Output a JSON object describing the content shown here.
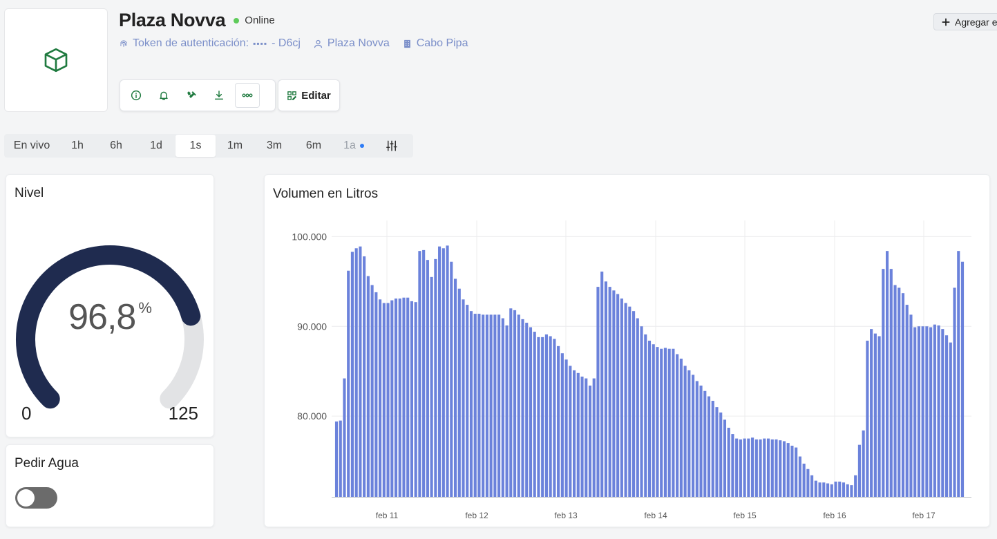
{
  "device": {
    "name": "Plaza Novva",
    "status": "Online",
    "token_label": "Token de autenticación:",
    "token_mask": "▪▪▪▪",
    "token_suffix": "- D6cj",
    "owner": "Plaza Novva",
    "org": "Cabo Pipa"
  },
  "header": {
    "add_label": "Agregar e"
  },
  "toolbar": {
    "icons": [
      "info-icon",
      "bell-icon",
      "tools-icon",
      "download-icon",
      "more-icon"
    ],
    "edit_label": "Editar"
  },
  "timeranges": {
    "items": [
      "En vivo",
      "1h",
      "6h",
      "1d",
      "1s",
      "1m",
      "3m",
      "6m",
      "1a"
    ],
    "active": "1s"
  },
  "gauge": {
    "title": "Nivel",
    "value": "96,8",
    "unit": "%",
    "min": "0",
    "max": "125",
    "fraction": 0.774,
    "color": "#1f2b4f"
  },
  "water": {
    "title": "Pedir Agua",
    "on": false
  },
  "chart_title": "Volumen en Litros",
  "chart_data": {
    "type": "bar",
    "title": "Volumen en Litros",
    "y_ticks": [
      "80.000",
      "90.000",
      "100.000"
    ],
    "x_ticks": [
      "feb 11",
      "feb 12",
      "feb 13",
      "feb 14",
      "feb 15",
      "feb 16",
      "feb 17"
    ],
    "ylim": [
      71000,
      100800
    ],
    "bar_color": "#6b82db",
    "grid": true,
    "values": [
      79400,
      79500,
      84200,
      96200,
      98300,
      98700,
      98900,
      97800,
      95600,
      94600,
      93800,
      93000,
      92600,
      92600,
      92900,
      93100,
      93100,
      93200,
      93200,
      92800,
      92700,
      98400,
      98500,
      97400,
      95500,
      97500,
      98900,
      98700,
      99000,
      97200,
      95300,
      94200,
      93000,
      92400,
      91700,
      91400,
      91400,
      91300,
      91300,
      91300,
      91300,
      91300,
      90900,
      90100,
      92000,
      91800,
      91300,
      90800,
      90400,
      89900,
      89400,
      88800,
      88800,
      89100,
      88900,
      88600,
      87800,
      87000,
      86300,
      85600,
      85100,
      84800,
      84400,
      84200,
      83400,
      84200,
      94400,
      96100,
      95000,
      94400,
      94000,
      93600,
      93100,
      92600,
      92200,
      91700,
      90900,
      90000,
      89100,
      88400,
      88000,
      87700,
      87500,
      87600,
      87500,
      87500,
      86900,
      86400,
      85600,
      85100,
      84600,
      83900,
      83400,
      82800,
      82200,
      81700,
      81000,
      80400,
      79600,
      78700,
      78000,
      77500,
      77400,
      77500,
      77500,
      77600,
      77400,
      77400,
      77500,
      77500,
      77400,
      77400,
      77300,
      77200,
      77000,
      76700,
      76500,
      75500,
      74700,
      74100,
      73400,
      72800,
      72600,
      72600,
      72500,
      72400,
      72700,
      72700,
      72600,
      72400,
      72300,
      73400,
      76800,
      78400,
      88400,
      89700,
      89200,
      88900,
      96400,
      98400,
      96400,
      94600,
      94300,
      93700,
      92400,
      91300,
      89900,
      90000,
      90000,
      90000,
      89900,
      90200,
      90100,
      89700,
      89000,
      88200,
      94300,
      98400,
      97200
    ]
  }
}
